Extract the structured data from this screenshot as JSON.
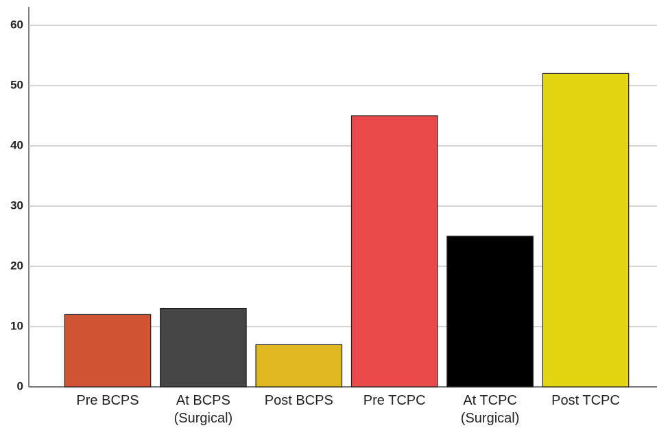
{
  "chart_data": {
    "type": "bar",
    "categories": [
      "Pre BCPS",
      "At BCPS (Surgical)",
      "Post BCPS",
      "Pre TCPC",
      "At TCPC (Surgical)",
      "Post TCPC"
    ],
    "values": [
      12,
      13,
      7,
      45,
      25,
      52
    ],
    "colors": [
      "#d05433",
      "#454545",
      "#e0b820",
      "#eb4a4a",
      "#000000",
      "#e2d410"
    ],
    "ylim": [
      0,
      60
    ],
    "yticks": [
      0,
      10,
      20,
      30,
      40,
      50,
      60
    ],
    "grid": true
  }
}
